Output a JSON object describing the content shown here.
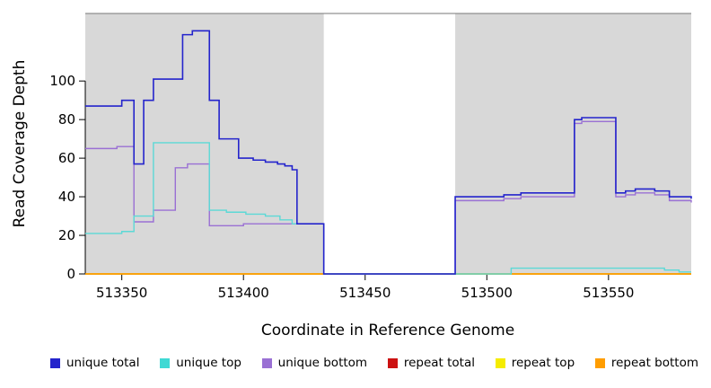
{
  "chart_data": {
    "type": "line",
    "title": "",
    "xlabel": "Coordinate in Reference Genome",
    "ylabel": "Read Coverage Depth",
    "step": "after",
    "xlim": [
      513335,
      513584
    ],
    "ylim": [
      0,
      135
    ],
    "x_ticks": [
      513350,
      513400,
      513450,
      513500,
      513550
    ],
    "y_ticks": [
      0,
      20,
      40,
      60,
      80,
      100
    ],
    "grid": false,
    "legend_position": "bottom",
    "panel_color": "#d8d8d8",
    "background_panels": [
      {
        "x0": 513335,
        "x1": 513433
      },
      {
        "x0": 513487,
        "x1": 513584
      }
    ],
    "gap_region": {
      "x0": 513433,
      "x1": 513487
    },
    "series": [
      {
        "name": "repeat total",
        "color": "#cc1111",
        "width": 1.4,
        "points": [
          [
            513335,
            0
          ],
          [
            513584,
            0
          ]
        ]
      },
      {
        "name": "repeat top",
        "color": "#f5ec00",
        "width": 1.4,
        "points": [
          [
            513335,
            0
          ],
          [
            513584,
            0
          ]
        ]
      },
      {
        "name": "repeat bottom",
        "color": "#ff9d00",
        "width": 1.4,
        "points": [
          [
            513335,
            0
          ],
          [
            513584,
            0
          ]
        ]
      },
      {
        "name": "unique bottom",
        "color": "#9a70d4",
        "width": 1.4,
        "points": [
          [
            513335,
            65
          ],
          [
            513348,
            66
          ],
          [
            513355,
            27
          ],
          [
            513363,
            33
          ],
          [
            513372,
            55
          ],
          [
            513377,
            57
          ],
          [
            513386,
            25
          ],
          [
            513400,
            26
          ],
          [
            513433,
            0
          ],
          [
            513487,
            38
          ],
          [
            513507,
            39
          ],
          [
            513514,
            40
          ],
          [
            513536,
            78
          ],
          [
            513539,
            79
          ],
          [
            513553,
            40
          ],
          [
            513557,
            41
          ],
          [
            513561,
            42
          ],
          [
            513569,
            41
          ],
          [
            513575,
            38
          ],
          [
            513584,
            37
          ]
        ]
      },
      {
        "name": "unique top",
        "color": "#5cd9d6",
        "width": 1.4,
        "points": [
          [
            513335,
            21
          ],
          [
            513350,
            22
          ],
          [
            513355,
            30
          ],
          [
            513363,
            68
          ],
          [
            513377,
            68
          ],
          [
            513386,
            33
          ],
          [
            513393,
            32
          ],
          [
            513401,
            31
          ],
          [
            513409,
            30
          ],
          [
            513415,
            28
          ],
          [
            513420,
            26
          ],
          [
            513433,
            0
          ],
          [
            513510,
            3
          ],
          [
            513573,
            2
          ],
          [
            513579,
            1
          ],
          [
            513584,
            1
          ]
        ]
      },
      {
        "name": "unique total",
        "color": "#2424cc",
        "width": 1.6,
        "points": [
          [
            513335,
            87
          ],
          [
            513350,
            90
          ],
          [
            513355,
            57
          ],
          [
            513359,
            90
          ],
          [
            513363,
            101
          ],
          [
            513375,
            124
          ],
          [
            513379,
            126
          ],
          [
            513386,
            90
          ],
          [
            513390,
            70
          ],
          [
            513398,
            60
          ],
          [
            513404,
            59
          ],
          [
            513409,
            58
          ],
          [
            513414,
            57
          ],
          [
            513417,
            56
          ],
          [
            513420,
            54
          ],
          [
            513422,
            26
          ],
          [
            513433,
            0
          ],
          [
            513487,
            40
          ],
          [
            513507,
            41
          ],
          [
            513514,
            42
          ],
          [
            513536,
            80
          ],
          [
            513539,
            81
          ],
          [
            513553,
            42
          ],
          [
            513557,
            43
          ],
          [
            513561,
            44
          ],
          [
            513569,
            43
          ],
          [
            513575,
            40
          ],
          [
            513584,
            39
          ]
        ]
      }
    ],
    "legend": [
      {
        "label": "unique total",
        "color": "#2424cc"
      },
      {
        "label": "unique top",
        "color": "#3fd9d4"
      },
      {
        "label": "unique bottom",
        "color": "#9a70d4"
      },
      {
        "label": "repeat total",
        "color": "#cc1111"
      },
      {
        "label": "repeat top",
        "color": "#f5ec00"
      },
      {
        "label": "repeat bottom",
        "color": "#ff9d00"
      }
    ]
  }
}
